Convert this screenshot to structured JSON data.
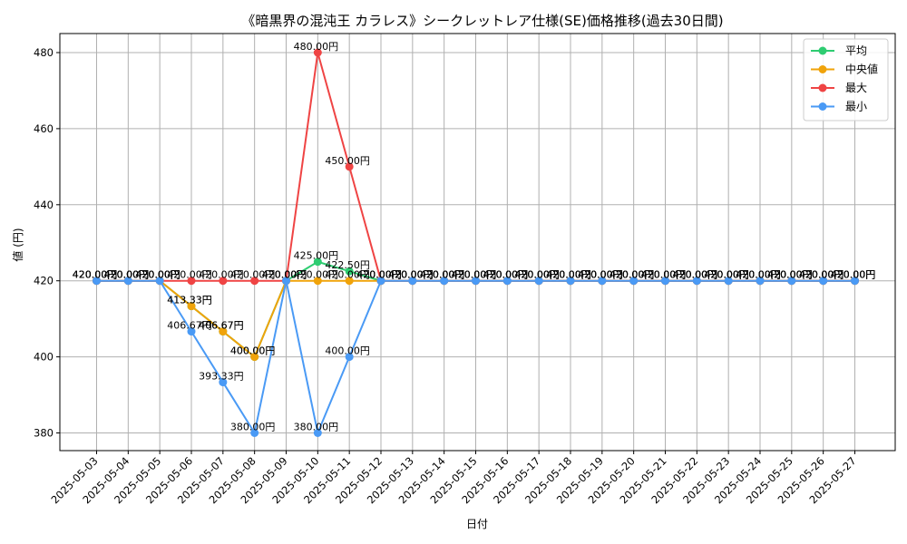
{
  "chart_data": {
    "type": "line",
    "title": "《暗黒界の混沌王 カラレス》シークレットレア仕様(SE)価格推移(過去30日間)",
    "xlabel": "日付",
    "ylabel": "値 (円)",
    "ylim": [
      375,
      485
    ],
    "yticks": [
      380,
      400,
      420,
      440,
      460,
      480
    ],
    "grid": true,
    "legend_position": "top-right",
    "label_suffix": "円",
    "categories": [
      "2025-05-03",
      "2025-05-04",
      "2025-05-05",
      "2025-05-06",
      "2025-05-07",
      "2025-05-08",
      "2025-05-09",
      "2025-05-10",
      "2025-05-11",
      "2025-05-12",
      "2025-05-13",
      "2025-05-14",
      "2025-05-15",
      "2025-05-16",
      "2025-05-17",
      "2025-05-18",
      "2025-05-19",
      "2025-05-20",
      "2025-05-21",
      "2025-05-22",
      "2025-05-23",
      "2025-05-24",
      "2025-05-25",
      "2025-05-26",
      "2025-05-27"
    ],
    "series": [
      {
        "name": "平均",
        "color": "#2ecc71",
        "values": [
          420,
          420,
          420,
          413.33,
          406.67,
          400,
          420,
          425,
          422.5,
          420,
          420,
          420,
          420,
          420,
          420,
          420,
          420,
          420,
          420,
          420,
          420,
          420,
          420,
          420,
          420
        ]
      },
      {
        "name": "中央値",
        "color": "#f0a30a",
        "values": [
          420,
          420,
          420,
          413.33,
          406.67,
          400,
          420,
          420,
          420,
          420,
          420,
          420,
          420,
          420,
          420,
          420,
          420,
          420,
          420,
          420,
          420,
          420,
          420,
          420,
          420
        ]
      },
      {
        "name": "最大",
        "color": "#ef4444",
        "values": [
          420,
          420,
          420,
          420,
          420,
          420,
          420,
          480,
          450,
          420,
          420,
          420,
          420,
          420,
          420,
          420,
          420,
          420,
          420,
          420,
          420,
          420,
          420,
          420,
          420
        ]
      },
      {
        "name": "最小",
        "color": "#4a9af5",
        "values": [
          420,
          420,
          420,
          406.67,
          393.33,
          380,
          420,
          380,
          400,
          420,
          420,
          420,
          420,
          420,
          420,
          420,
          420,
          420,
          420,
          420,
          420,
          420,
          420,
          420,
          420
        ]
      }
    ]
  }
}
